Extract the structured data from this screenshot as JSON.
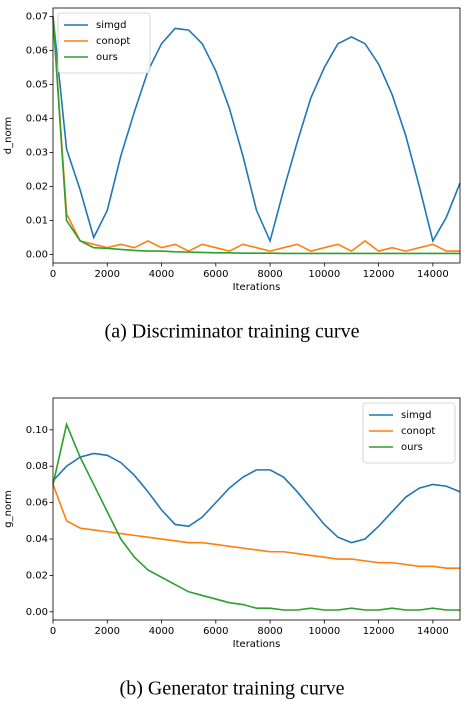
{
  "chart_data": [
    {
      "type": "line",
      "caption": "(a) Discriminator training curve",
      "xlabel": "Iterations",
      "ylabel": "d_norm",
      "legend": "upper left",
      "x": [
        0,
        500,
        1000,
        1500,
        2000,
        2500,
        3000,
        3500,
        4000,
        4500,
        5000,
        5500,
        6000,
        6500,
        7000,
        7500,
        8000,
        8500,
        9000,
        9500,
        10000,
        10500,
        11000,
        11500,
        12000,
        12500,
        13000,
        13500,
        14000,
        14500,
        15000
      ],
      "series": [
        {
          "name": "simgd",
          "color": "#1f77b4",
          "values": [
            0.07,
            0.031,
            0.019,
            0.005,
            0.013,
            0.029,
            0.042,
            0.054,
            0.062,
            0.0665,
            0.066,
            0.062,
            0.054,
            0.043,
            0.029,
            0.013,
            0.004,
            0.019,
            0.033,
            0.046,
            0.055,
            0.062,
            0.064,
            0.062,
            0.056,
            0.047,
            0.035,
            0.02,
            0.004,
            0.011,
            0.021
          ]
        },
        {
          "name": "conopt",
          "color": "#ff7f0e",
          "values": [
            0.07,
            0.012,
            0.004,
            0.003,
            0.002,
            0.003,
            0.002,
            0.004,
            0.002,
            0.003,
            0.001,
            0.003,
            0.002,
            0.001,
            0.003,
            0.002,
            0.001,
            0.002,
            0.003,
            0.001,
            0.002,
            0.003,
            0.001,
            0.004,
            0.001,
            0.002,
            0.001,
            0.002,
            0.003,
            0.001,
            0.001
          ]
        },
        {
          "name": "ours",
          "color": "#2ca02c",
          "values": [
            0.07,
            0.01,
            0.004,
            0.002,
            0.0018,
            0.0015,
            0.0012,
            0.001,
            0.001,
            0.0008,
            0.0007,
            0.0006,
            0.0005,
            0.0005,
            0.0004,
            0.0004,
            0.0004,
            0.0003,
            0.0003,
            0.0003,
            0.0003,
            0.0003,
            0.0003,
            0.0003,
            0.0003,
            0.0003,
            0.0003,
            0.0003,
            0.0003,
            0.0003,
            0.0003
          ]
        }
      ],
      "xlim": [
        0,
        15000
      ],
      "xticks": [
        0,
        2000,
        4000,
        6000,
        8000,
        10000,
        12000,
        14000
      ],
      "ylim": [
        -0.0025,
        0.0725
      ],
      "yticks": [
        {
          "value": 0,
          "label": "0.00"
        },
        0.01,
        0.02,
        0.03,
        0.04,
        0.05,
        0.06,
        0.07
      ]
    },
    {
      "type": "line",
      "caption": "(b) Generator training curve",
      "xlabel": "Iterations",
      "ylabel": "g_norm",
      "legend": "upper right",
      "x": [
        0,
        500,
        1000,
        1500,
        2000,
        2500,
        3000,
        3500,
        4000,
        4500,
        5000,
        5500,
        6000,
        6500,
        7000,
        7500,
        8000,
        8500,
        9000,
        9500,
        10000,
        10500,
        11000,
        11500,
        12000,
        12500,
        13000,
        13500,
        14000,
        14500,
        15000
      ],
      "series": [
        {
          "name": "simgd",
          "color": "#1f77b4",
          "values": [
            0.072,
            0.08,
            0.085,
            0.087,
            0.086,
            0.082,
            0.075,
            0.066,
            0.056,
            0.048,
            0.047,
            0.052,
            0.06,
            0.068,
            0.074,
            0.078,
            0.078,
            0.074,
            0.066,
            0.057,
            0.048,
            0.041,
            0.038,
            0.04,
            0.047,
            0.055,
            0.063,
            0.068,
            0.07,
            0.069,
            0.066
          ]
        },
        {
          "name": "conopt",
          "color": "#ff7f0e",
          "values": [
            0.07,
            0.05,
            0.046,
            0.045,
            0.044,
            0.043,
            0.042,
            0.041,
            0.04,
            0.039,
            0.038,
            0.038,
            0.037,
            0.036,
            0.035,
            0.034,
            0.033,
            0.033,
            0.032,
            0.031,
            0.03,
            0.029,
            0.029,
            0.028,
            0.027,
            0.027,
            0.026,
            0.025,
            0.025,
            0.024,
            0.024
          ]
        },
        {
          "name": "ours",
          "color": "#2ca02c",
          "values": [
            0.07,
            0.103,
            0.085,
            0.07,
            0.055,
            0.04,
            0.03,
            0.023,
            0.019,
            0.015,
            0.011,
            0.009,
            0.007,
            0.005,
            0.004,
            0.002,
            0.002,
            0.001,
            0.001,
            0.002,
            0.001,
            0.001,
            0.002,
            0.001,
            0.001,
            0.002,
            0.001,
            0.001,
            0.002,
            0.001,
            0.001
          ]
        }
      ],
      "xlim": [
        0,
        15000
      ],
      "xticks": [
        0,
        2000,
        4000,
        6000,
        8000,
        10000,
        12000,
        14000
      ],
      "ylim": [
        -0.0045,
        0.1175
      ],
      "yticks": [
        {
          "value": 0,
          "label": "0.00"
        },
        0.02,
        0.04,
        0.06,
        0.08,
        {
          "value": 0.1,
          "label": "0.10"
        }
      ]
    }
  ]
}
